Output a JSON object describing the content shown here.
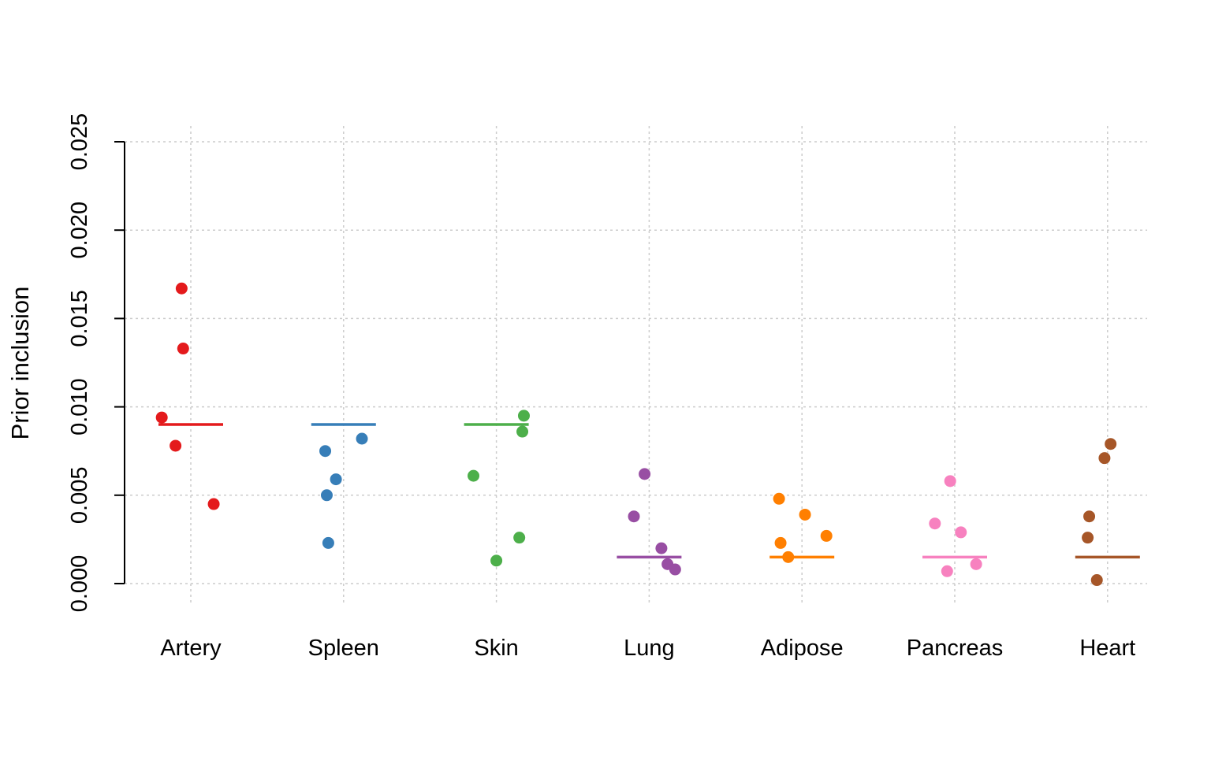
{
  "chart_data": {
    "type": "scatter",
    "ylabel": "Prior inclusion",
    "xlabel": "",
    "title": "",
    "ylim": [
      0.0,
      0.025
    ],
    "yticks": [
      "0.000",
      "0.005",
      "0.010",
      "0.015",
      "0.020",
      "0.025"
    ],
    "ytick_values": [
      0.0,
      0.005,
      0.01,
      0.015,
      0.02,
      0.025
    ],
    "grid": true,
    "categories": [
      "Artery",
      "Spleen",
      "Skin",
      "Lung",
      "Adipose",
      "Pancreas",
      "Heart"
    ],
    "series": [
      {
        "category": "Artery",
        "color": "#e41a1c",
        "mean": 0.009,
        "points": [
          {
            "jitter": -0.19,
            "y": 0.0094
          },
          {
            "jitter": -0.1,
            "y": 0.0078
          },
          {
            "jitter": -0.06,
            "y": 0.0167
          },
          {
            "jitter": -0.05,
            "y": 0.0133
          },
          {
            "jitter": 0.15,
            "y": 0.0045
          }
        ]
      },
      {
        "category": "Spleen",
        "color": "#377eb8",
        "mean": 0.009,
        "points": [
          {
            "jitter": -0.12,
            "y": 0.0075
          },
          {
            "jitter": -0.11,
            "y": 0.005
          },
          {
            "jitter": -0.1,
            "y": 0.0023
          },
          {
            "jitter": -0.05,
            "y": 0.0059
          },
          {
            "jitter": 0.12,
            "y": 0.0082
          }
        ]
      },
      {
        "category": "Skin",
        "color": "#4daf4a",
        "mean": 0.009,
        "points": [
          {
            "jitter": -0.15,
            "y": 0.0061
          },
          {
            "jitter": 0.0,
            "y": 0.0013
          },
          {
            "jitter": 0.15,
            "y": 0.0026
          },
          {
            "jitter": 0.17,
            "y": 0.0086
          },
          {
            "jitter": 0.18,
            "y": 0.0095
          }
        ]
      },
      {
        "category": "Lung",
        "color": "#984ea3",
        "mean": 0.0015,
        "points": [
          {
            "jitter": -0.1,
            "y": 0.0038
          },
          {
            "jitter": -0.03,
            "y": 0.0062
          },
          {
            "jitter": 0.08,
            "y": 0.002
          },
          {
            "jitter": 0.12,
            "y": 0.0011
          },
          {
            "jitter": 0.17,
            "y": 0.0008
          }
        ]
      },
      {
        "category": "Adipose",
        "color": "#ff7f00",
        "mean": 0.0015,
        "points": [
          {
            "jitter": -0.15,
            "y": 0.0048
          },
          {
            "jitter": -0.14,
            "y": 0.0023
          },
          {
            "jitter": -0.09,
            "y": 0.0015
          },
          {
            "jitter": 0.02,
            "y": 0.0039
          },
          {
            "jitter": 0.16,
            "y": 0.0027
          }
        ]
      },
      {
        "category": "Pancreas",
        "color": "#f781bf",
        "mean": 0.0015,
        "points": [
          {
            "jitter": -0.13,
            "y": 0.0034
          },
          {
            "jitter": -0.05,
            "y": 0.0007
          },
          {
            "jitter": -0.03,
            "y": 0.0058
          },
          {
            "jitter": 0.04,
            "y": 0.0029
          },
          {
            "jitter": 0.14,
            "y": 0.0011
          }
        ]
      },
      {
        "category": "Heart",
        "color": "#a65628",
        "mean": 0.0015,
        "points": [
          {
            "jitter": -0.12,
            "y": 0.0038
          },
          {
            "jitter": -0.13,
            "y": 0.0026
          },
          {
            "jitter": -0.07,
            "y": 0.0002
          },
          {
            "jitter": -0.02,
            "y": 0.0071
          },
          {
            "jitter": 0.02,
            "y": 0.0079
          }
        ]
      }
    ]
  }
}
